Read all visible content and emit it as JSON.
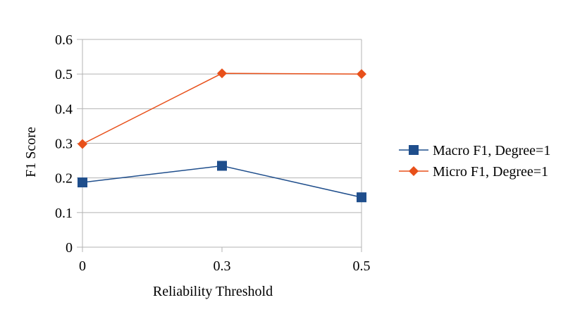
{
  "chart_data": {
    "type": "line",
    "title": "",
    "xlabel": "Reliability Threshold",
    "ylabel": "F1 Score",
    "categories": [
      "0",
      "0.3",
      "0.5"
    ],
    "y_ticks": [
      "0",
      "0.1",
      "0.2",
      "0.3",
      "0.4",
      "0.5",
      "0.6"
    ],
    "ylim": [
      0,
      0.6
    ],
    "grid": true,
    "legend_position": "right",
    "series": [
      {
        "name": "Macro F1, Degree=1",
        "values": [
          0.187,
          0.235,
          0.144
        ],
        "color": "#1f4e8c",
        "marker": "square"
      },
      {
        "name": "Micro F1, Degree=1",
        "values": [
          0.298,
          0.502,
          0.5
        ],
        "color": "#e8501a",
        "marker": "diamond"
      }
    ]
  }
}
